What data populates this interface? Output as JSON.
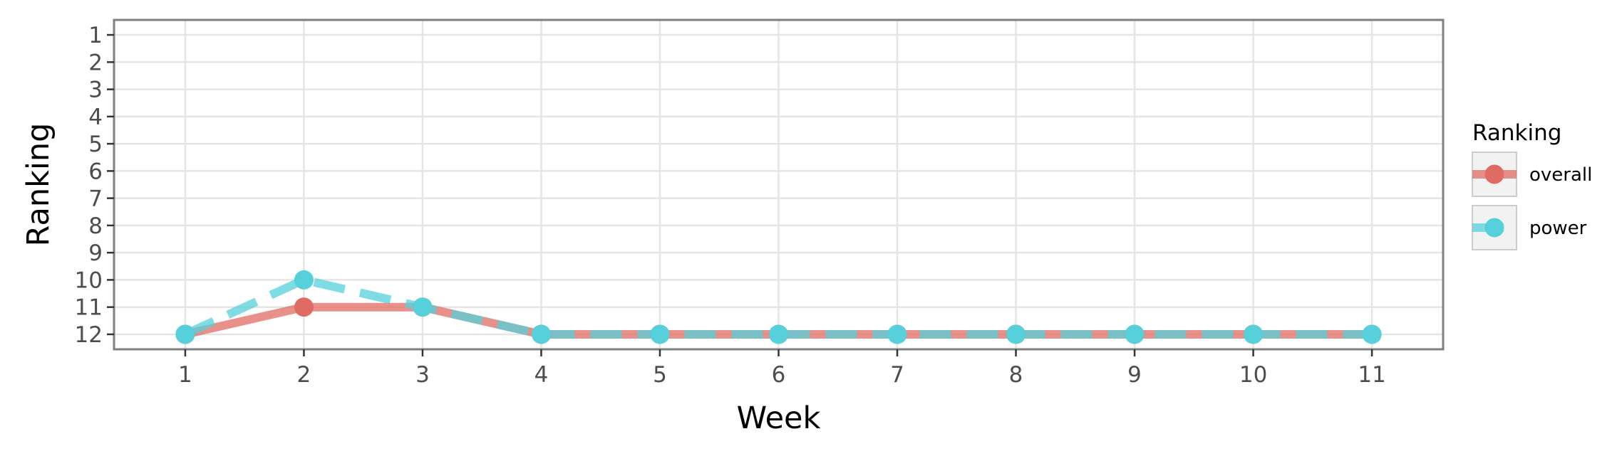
{
  "chart_data": {
    "type": "line",
    "xlabel": "Week",
    "ylabel": "Ranking",
    "x": [
      1,
      2,
      3,
      4,
      5,
      6,
      7,
      8,
      9,
      10,
      11
    ],
    "x_ticks": [
      "1",
      "2",
      "3",
      "4",
      "5",
      "6",
      "7",
      "8",
      "9",
      "10",
      "11"
    ],
    "y_ticks": [
      "1",
      "2",
      "3",
      "4",
      "5",
      "6",
      "7",
      "8",
      "9",
      "10",
      "11",
      "12"
    ],
    "xlim": [
      0.4,
      11.6
    ],
    "ylim": [
      12.55,
      0.45
    ],
    "y_reversed": true,
    "grid": true,
    "legend": {
      "title": "Ranking",
      "position": "right"
    },
    "series": [
      {
        "name": "overall",
        "color": "#e06b63",
        "line_style": "solid",
        "values": [
          12,
          11,
          11,
          12,
          12,
          12,
          12,
          12,
          12,
          12,
          12
        ]
      },
      {
        "name": "power",
        "color": "#56d0db",
        "line_style": "dashed",
        "values": [
          12,
          10,
          11,
          12,
          12,
          12,
          12,
          12,
          12,
          12,
          12
        ]
      }
    ]
  }
}
